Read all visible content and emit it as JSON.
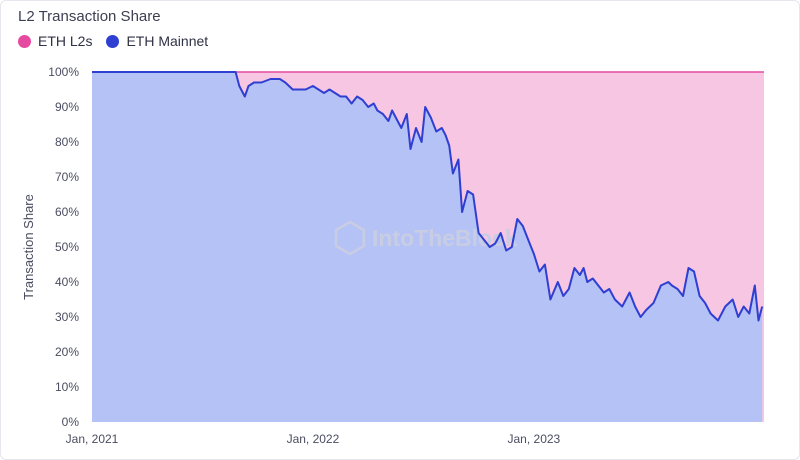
{
  "chart_data": {
    "type": "area",
    "title": "L2 Transaction Share",
    "ylabel": "Transaction Share",
    "xlabel": "",
    "watermark": "IntoTheBlock",
    "ylim": [
      0,
      100
    ],
    "yticks": [
      "0%",
      "10%",
      "20%",
      "30%",
      "40%",
      "50%",
      "60%",
      "70%",
      "80%",
      "90%",
      "100%"
    ],
    "xticks": [
      {
        "label": "Jan, 2021",
        "x": 0
      },
      {
        "label": "Jan, 2022",
        "x": 12
      },
      {
        "label": "Jan, 2023",
        "x": 24
      }
    ],
    "xlim": [
      0,
      36.5
    ],
    "legend_position": "top-left",
    "grid": false,
    "series": [
      {
        "name": "ETH L2s",
        "color": "#e64aa0",
        "fill": "#f6c6e2"
      },
      {
        "name": "ETH Mainnet",
        "color": "#2f3fd1",
        "fill": "#b5c2f5"
      }
    ],
    "mainnet_share": {
      "x": [
        0,
        5.8,
        6.3,
        7.2,
        7.8,
        8.0,
        8.3,
        8.5,
        8.8,
        9.2,
        9.7,
        10.2,
        10.5,
        10.9,
        11.3,
        11.6,
        12.0,
        12.3,
        12.6,
        12.9,
        13.2,
        13.5,
        13.8,
        14.1,
        14.4,
        14.7,
        15.0,
        15.3,
        15.5,
        15.8,
        16.1,
        16.3,
        16.6,
        16.8,
        17.1,
        17.3,
        17.6,
        17.9,
        18.1,
        18.4,
        18.7,
        19.0,
        19.2,
        19.4,
        19.6,
        19.9,
        20.1,
        20.4,
        20.7,
        21.0,
        21.3,
        21.6,
        21.9,
        22.2,
        22.5,
        22.8,
        23.1,
        23.4,
        23.7,
        24.0,
        24.3,
        24.6,
        24.9,
        25.3,
        25.6,
        25.9,
        26.2,
        26.5,
        26.7,
        26.9,
        27.2,
        27.5,
        27.8,
        28.1,
        28.4,
        28.8,
        29.2,
        29.5,
        29.8,
        30.1,
        30.5,
        30.9,
        31.3,
        31.5,
        31.8,
        32.1,
        32.4,
        32.7,
        33.0,
        33.3,
        33.6,
        34.0,
        34.4,
        34.8,
        35.1,
        35.4,
        35.7,
        36.0,
        36.2,
        36.4
      ],
      "y": [
        100,
        100,
        100,
        100,
        100,
        96,
        93,
        96,
        97,
        97,
        98,
        98,
        97,
        95,
        95,
        95,
        96,
        95,
        94,
        95,
        94,
        93,
        93,
        91,
        93,
        92,
        90,
        91,
        89,
        88,
        86,
        89,
        86,
        84,
        88,
        78,
        84,
        80,
        90,
        87,
        83,
        84,
        82,
        79,
        71,
        75,
        60,
        66,
        65,
        54,
        52,
        50,
        51,
        54,
        49,
        50,
        58,
        56,
        52,
        48,
        43,
        45,
        35,
        40,
        36,
        38,
        44,
        42,
        44,
        40,
        41,
        39,
        37,
        38,
        35,
        33,
        37,
        33,
        30,
        32,
        34,
        39,
        40,
        39,
        38,
        36,
        44,
        43,
        36,
        34,
        31,
        29,
        33,
        35,
        30,
        33,
        31,
        39,
        29,
        33
      ]
    }
  }
}
